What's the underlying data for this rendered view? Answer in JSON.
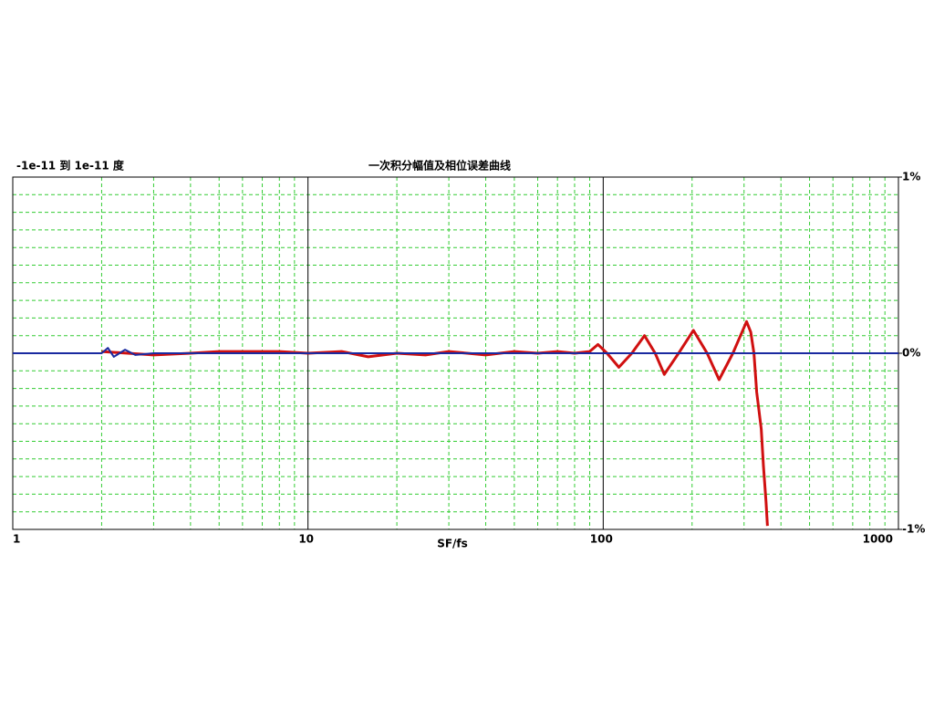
{
  "chart_data": {
    "type": "line",
    "title": "一次积分幅值及相位误差曲线",
    "subtitle": "-1e-11 到 1e-11 度",
    "x_label": "SF/fs",
    "log_x": true,
    "xlim": [
      1,
      1000
    ],
    "ylim": [
      -1,
      1
    ],
    "xticks": [
      1,
      10,
      100,
      1000
    ],
    "yticks": [
      {
        "value": -1,
        "label": "-1%"
      },
      {
        "value": 0,
        "label": "0%"
      },
      {
        "value": 1,
        "label": "1%"
      }
    ],
    "x_grid": [
      2,
      3,
      4,
      5,
      6,
      7,
      8,
      9,
      20,
      30,
      40,
      50,
      60,
      70,
      80,
      90,
      200,
      300,
      400,
      500,
      600,
      700,
      800,
      900
    ],
    "y_grid": [
      -0.9,
      -0.8,
      -0.7,
      -0.6,
      -0.5,
      -0.4,
      -0.3,
      -0.2,
      -0.1,
      0.1,
      0.2,
      0.3,
      0.4,
      0.5,
      0.6,
      0.7,
      0.8,
      0.9
    ],
    "grid_color": "#33cc33",
    "series": [
      {
        "color": "#d01010",
        "x": [
          2,
          3,
          4,
          5,
          6,
          8,
          10,
          13,
          16,
          20,
          25,
          30,
          40,
          50,
          60,
          70,
          80,
          90,
          96,
          103,
          113,
          125,
          138,
          150,
          161,
          180,
          202,
          225,
          247,
          275,
          306,
          316,
          324,
          331,
          343,
          349,
          356,
          360
        ],
        "values": [
          0.01,
          -0.01,
          0.0,
          0.01,
          0.01,
          0.01,
          0.0,
          0.01,
          -0.02,
          0.0,
          -0.01,
          0.01,
          -0.01,
          0.01,
          0.0,
          0.01,
          0.0,
          0.01,
          0.05,
          0.0,
          -0.08,
          0.0,
          0.1,
          0.0,
          -0.12,
          0.0,
          0.13,
          0.0,
          -0.15,
          0.0,
          0.18,
          0.12,
          0.0,
          -0.22,
          -0.43,
          -0.64,
          -0.84,
          -0.98
        ]
      },
      {
        "color": "#1a2aa0",
        "x": [
          1,
          2,
          2.1,
          2.2,
          2.4,
          2.6,
          3,
          5,
          10,
          30,
          100,
          300,
          1000
        ],
        "values": [
          0,
          0,
          0.03,
          -0.02,
          0.02,
          -0.01,
          0,
          0,
          0,
          0,
          0,
          0,
          0
        ]
      }
    ]
  }
}
